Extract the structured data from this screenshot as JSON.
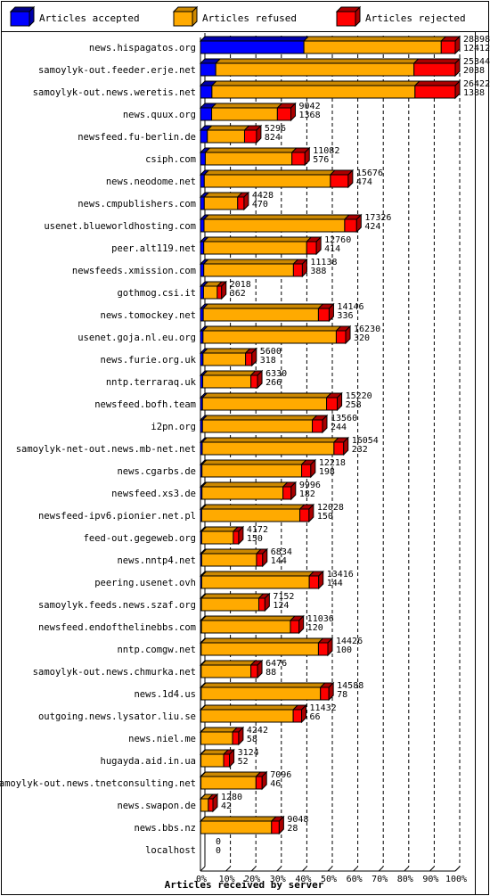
{
  "chart_data": {
    "type": "bar",
    "orientation": "horizontal",
    "stacked": true,
    "xlabel": "Articles received by server",
    "xticks": [
      "0%",
      "10%",
      "20%",
      "30%",
      "40%",
      "50%",
      "60%",
      "70%",
      "80%",
      "90%",
      "100%"
    ],
    "grid": true,
    "legend": "top",
    "series": [
      {
        "name": "Articles accepted",
        "color": "#0000ff"
      },
      {
        "name": "Articles refused",
        "color": "#ffaa00"
      },
      {
        "name": "Articles rejected",
        "color": "#ff0000"
      }
    ],
    "categories": [
      "news.hispagatos.org",
      "samoylyk-out.feeder.erje.net",
      "samoylyk-out.news.weretis.net",
      "news.quux.org",
      "newsfeed.fu-berlin.de",
      "csiph.com",
      "news.neodome.net",
      "news.cmpublishers.com",
      "usenet.blueworldhosting.com",
      "peer.alt119.net",
      "newsfeeds.xmission.com",
      "gothmog.csi.it",
      "news.tomockey.net",
      "usenet.goja.nl.eu.org",
      "news.furie.org.uk",
      "nntp.terraraq.uk",
      "newsfeed.bofh.team",
      "i2pn.org",
      "samoylyk-net-out.news.mb-net.net",
      "news.cgarbs.de",
      "newsfeed.xs3.de",
      "newsfeed-ipv6.pionier.net.pl",
      "feed-out.gegeweb.org",
      "news.nntp4.net",
      "peering.usenet.ovh",
      "samoylyk.feeds.news.szaf.org",
      "newsfeed.endofthelinebbs.com",
      "nntp.comgw.net",
      "samoylyk-out.news.chmurka.net",
      "news.1d4.us",
      "outgoing.news.lysator.liu.se",
      "news.niel.me",
      "hugayda.aid.in.ua",
      "samoylyk-out.news.tnetconsulting.net",
      "news.swapon.de",
      "news.bbs.nz",
      "localhost"
    ],
    "total_labels": [
      "28898",
      "25344",
      "26422",
      "9042",
      "5296",
      "11082",
      "15676",
      "4428",
      "17326",
      "12760",
      "11138",
      "2018",
      "14146",
      "16230",
      "5600",
      "6330",
      "15220",
      "13560",
      "16054",
      "12218",
      "9996",
      "12028",
      "4172",
      "6834",
      "13416",
      "7152",
      "11036",
      "14426",
      "6476",
      "14588",
      "11432",
      "4242",
      "3124",
      "7096",
      "1280",
      "9048",
      "0"
    ],
    "accepted_labels": [
      "12412",
      "2038",
      "1388",
      "1368",
      "824",
      "576",
      "474",
      "470",
      "424",
      "414",
      "388",
      "362",
      "336",
      "320",
      "318",
      "266",
      "258",
      "244",
      "232",
      "198",
      "182",
      "150",
      "150",
      "144",
      "144",
      "124",
      "120",
      "100",
      "88",
      "78",
      "66",
      "58",
      "52",
      "46",
      "42",
      "28",
      "0"
    ],
    "accepted_pct": [
      40.6,
      6.0,
      4.5,
      4.4,
      2.7,
      1.9,
      1.5,
      1.5,
      1.4,
      1.3,
      1.3,
      1.2,
      1.1,
      1.0,
      1.0,
      0.9,
      0.8,
      0.8,
      0.7,
      0.6,
      0.6,
      0.5,
      0.5,
      0.5,
      0.5,
      0.4,
      0.4,
      0.3,
      0.3,
      0.3,
      0.2,
      0.2,
      0.2,
      0.2,
      0.1,
      0.1,
      0
    ],
    "refused_pct": [
      53.9,
      77.8,
      79.7,
      25.8,
      14.6,
      34.0,
      49.5,
      13.1,
      55.2,
      40.4,
      35.2,
      5.4,
      45.2,
      52.3,
      16.7,
      18.9,
      48.7,
      43.1,
      51.7,
      39.1,
      31.8,
      38.5,
      12.4,
      21.5,
      42.2,
      22.5,
      34.9,
      46.0,
      19.5,
      46.8,
      36.2,
      12.4,
      8.9,
      21.6,
      3.0,
      27.8,
      0
    ],
    "rejected_pct": [
      5.5,
      16.2,
      15.8,
      5.3,
      4.7,
      5.1,
      7.0,
      2.5,
      4.7,
      3.8,
      3.5,
      1.7,
      4.2,
      3.7,
      2.5,
      2.6,
      4.2,
      4.0,
      3.8,
      3.6,
      3.2,
      3.6,
      2.1,
      2.4,
      3.7,
      2.4,
      3.4,
      3.7,
      2.6,
      3.3,
      3.3,
      2.4,
      2.3,
      2.4,
      1.8,
      3.0,
      0
    ]
  }
}
